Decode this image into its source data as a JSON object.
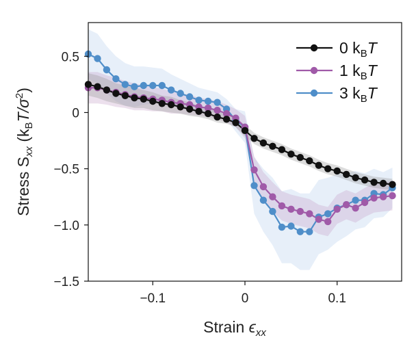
{
  "chart_data": {
    "type": "line",
    "xlabel": "Strain ϵxx",
    "xlabel_main": "Strain ",
    "xlabel_symbol": "ϵ",
    "xlabel_sub": "xx",
    "ylabel": "Stress Sxx (kBT/σ2)",
    "ylabel_main": "Stress S",
    "ylabel_sub1": "xx",
    "ylabel_open": " (k",
    "ylabel_sub2": "B",
    "ylabel_T": "T/σ",
    "ylabel_sup": "2",
    "ylabel_close": ")",
    "xlim": [
      -0.17,
      0.17
    ],
    "ylim": [
      -1.5,
      0.8
    ],
    "xticks": [
      -0.1,
      0,
      0.1
    ],
    "xtick_labels": [
      "−0.1",
      "0",
      "0.1"
    ],
    "yticks": [
      0.5,
      0,
      -0.5,
      -1.0,
      -1.5
    ],
    "ytick_labels": [
      "0.5",
      "0",
      "−0.5",
      "−1.0",
      "−1.5"
    ],
    "grid": false,
    "legend_position": "top-right",
    "series": [
      {
        "name": "0 kBT",
        "name_main": "0 k",
        "name_sub": "B",
        "name_tail": "T",
        "color": "#111111",
        "band_color": "#9a9a9a",
        "x": [
          -0.17,
          -0.16,
          -0.15,
          -0.14,
          -0.13,
          -0.12,
          -0.11,
          -0.1,
          -0.09,
          -0.08,
          -0.07,
          -0.06,
          -0.05,
          -0.04,
          -0.03,
          -0.02,
          -0.01,
          0.0,
          0.01,
          0.02,
          0.03,
          0.04,
          0.05,
          0.06,
          0.07,
          0.08,
          0.09,
          0.1,
          0.11,
          0.12,
          0.13,
          0.14,
          0.15,
          0.16
        ],
        "y": [
          0.25,
          0.23,
          0.2,
          0.17,
          0.15,
          0.13,
          0.12,
          0.1,
          0.08,
          0.07,
          0.05,
          0.03,
          0.01,
          -0.01,
          -0.04,
          -0.06,
          -0.09,
          -0.16,
          -0.23,
          -0.27,
          -0.3,
          -0.33,
          -0.37,
          -0.4,
          -0.43,
          -0.47,
          -0.5,
          -0.52,
          -0.55,
          -0.58,
          -0.6,
          -0.62,
          -0.63,
          -0.64
        ],
        "band": [
          0.1,
          0.1,
          0.1,
          0.09,
          0.09,
          0.09,
          0.08,
          0.08,
          0.07,
          0.07,
          0.06,
          0.06,
          0.05,
          0.05,
          0.05,
          0.04,
          0.04,
          0.05,
          0.05,
          0.05,
          0.05,
          0.05,
          0.05,
          0.05,
          0.05,
          0.05,
          0.05,
          0.05,
          0.05,
          0.05,
          0.05,
          0.05,
          0.05,
          0.05
        ]
      },
      {
        "name": "1 kBT",
        "name_main": "1 k",
        "name_sub": "B",
        "name_tail": "T",
        "color": "#a05aa8",
        "band_color": "#c9a6cc",
        "x": [
          -0.17,
          -0.16,
          -0.15,
          -0.14,
          -0.13,
          -0.12,
          -0.11,
          -0.1,
          -0.09,
          -0.08,
          -0.07,
          -0.06,
          -0.05,
          -0.04,
          -0.03,
          -0.02,
          -0.01,
          0.0,
          0.01,
          0.02,
          0.03,
          0.04,
          0.05,
          0.06,
          0.07,
          0.08,
          0.09,
          0.1,
          0.11,
          0.12,
          0.13,
          0.14,
          0.15,
          0.16
        ],
        "y": [
          0.22,
          0.22,
          0.2,
          0.18,
          0.16,
          0.14,
          0.13,
          0.12,
          0.11,
          0.09,
          0.08,
          0.07,
          0.05,
          0.04,
          0.02,
          -0.01,
          -0.05,
          -0.13,
          -0.51,
          -0.66,
          -0.75,
          -0.83,
          -0.86,
          -0.88,
          -0.9,
          -0.95,
          -0.97,
          -0.86,
          -0.82,
          -0.85,
          -0.8,
          -0.76,
          -0.75,
          -0.74
        ],
        "band": [
          0.14,
          0.14,
          0.13,
          0.13,
          0.12,
          0.12,
          0.11,
          0.11,
          0.1,
          0.1,
          0.09,
          0.09,
          0.08,
          0.08,
          0.08,
          0.08,
          0.08,
          0.1,
          0.12,
          0.13,
          0.13,
          0.13,
          0.13,
          0.13,
          0.13,
          0.13,
          0.13,
          0.13,
          0.13,
          0.13,
          0.13,
          0.13,
          0.13,
          0.13
        ]
      },
      {
        "name": "3 kBT",
        "name_main": "3 k",
        "name_sub": "B",
        "name_tail": "T",
        "color": "#4f8ec9",
        "band_color": "#b9d2ee",
        "x": [
          -0.17,
          -0.16,
          -0.15,
          -0.14,
          -0.13,
          -0.12,
          -0.11,
          -0.1,
          -0.09,
          -0.08,
          -0.07,
          -0.06,
          -0.05,
          -0.04,
          -0.03,
          -0.02,
          -0.01,
          0.0,
          0.01,
          0.02,
          0.03,
          0.04,
          0.05,
          0.06,
          0.07,
          0.08,
          0.09,
          0.1,
          0.11,
          0.12,
          0.13,
          0.14,
          0.15,
          0.16
        ],
        "y": [
          0.52,
          0.48,
          0.38,
          0.3,
          0.25,
          0.23,
          0.24,
          0.24,
          0.24,
          0.2,
          0.17,
          0.14,
          0.11,
          0.1,
          0.09,
          0.03,
          -0.07,
          -0.13,
          -0.65,
          -0.78,
          -0.88,
          -1.02,
          -1.01,
          -1.06,
          -1.06,
          -0.93,
          -0.9,
          -0.85,
          -0.82,
          -0.78,
          -0.78,
          -0.72,
          -0.73,
          -0.67
        ],
        "band": [
          0.22,
          0.22,
          0.21,
          0.2,
          0.19,
          0.18,
          0.17,
          0.16,
          0.15,
          0.14,
          0.13,
          0.12,
          0.11,
          0.1,
          0.09,
          0.09,
          0.1,
          0.14,
          0.25,
          0.28,
          0.3,
          0.32,
          0.33,
          0.34,
          0.34,
          0.33,
          0.32,
          0.3,
          0.28,
          0.26,
          0.24,
          0.22,
          0.2,
          0.18
        ]
      }
    ]
  }
}
